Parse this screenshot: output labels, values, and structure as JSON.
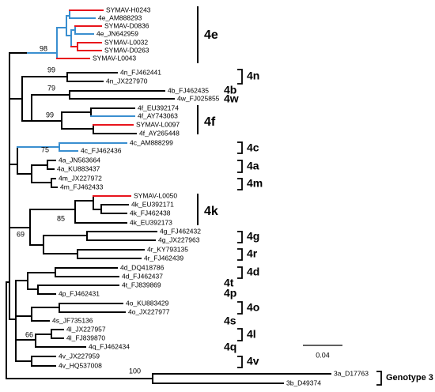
{
  "leaves": [
    "SYMAV-H0243",
    "4e_AM888293",
    "SYMAV-D0836",
    "4e_JN642959",
    "SYMAV-L0032",
    "SYMAV-D0263",
    "SYMAV-L0043",
    "4n_FJ462441",
    "4n_JX227970",
    "4b_FJ462435",
    "4w_FJ025855",
    "4f_EU392174",
    "4f_AY743063",
    "SYMAV-L0097",
    "4f_AY265448",
    "4c_AM888299",
    "4c_FJ462436",
    "4a_JN563664",
    "4a_KU883437",
    "4m_JX227972",
    "4m_FJ462433",
    "SYMAV-L0050",
    "4k_EU392171",
    "4k_FJ462438",
    "4k_EU392173",
    "4g_FJ462432",
    "4g_JX227963",
    "4r_KY793135",
    "4r_FJ462439",
    "4d_DQ418786",
    "4d_FJ462437",
    "4t_FJ839869",
    "4p_FJ462431",
    "4o_KU883429",
    "4o_JX227977",
    "4s_JF735136",
    "4l_JX227957",
    "4l_FJ839870",
    "4q_FJ462434",
    "4v_JX227959",
    "4v_HQ537008",
    "3a_D17763",
    "3b_D49374"
  ],
  "bootstraps": [
    "98",
    "99",
    "79",
    "99",
    "75",
    "85",
    "69",
    "66",
    "100"
  ],
  "genotypes": [
    "4e",
    "4n",
    "4b",
    "4w",
    "4f",
    "4c",
    "4a",
    "4m",
    "4k",
    "4g",
    "4r",
    "4d",
    "4t",
    "4p",
    "4o",
    "4s",
    "4l",
    "4q",
    "4v",
    "Genotype 3"
  ],
  "scale_bar": "0.04"
}
